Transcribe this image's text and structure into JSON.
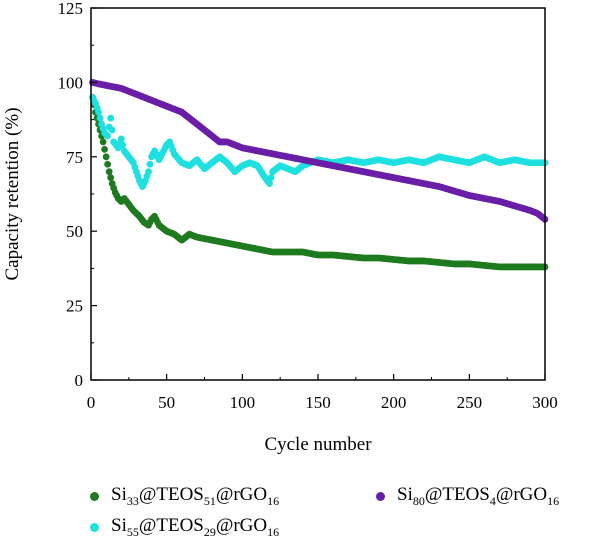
{
  "chart_data": {
    "type": "scatter",
    "xlabel": "Cycle number",
    "ylabel": "Capacity retention (%)",
    "xlim": [
      0,
      300
    ],
    "ylim": [
      0,
      125
    ],
    "x_ticks": [
      "0",
      "50",
      "100",
      "150",
      "200",
      "250",
      "300"
    ],
    "y_ticks": [
      "0",
      "25",
      "50",
      "75",
      "100",
      "125"
    ],
    "grid": false,
    "legend_position": "bottom",
    "series": [
      {
        "name": "Si33@TEOS51@rGO16",
        "color": "#1e7a1e",
        "points": [
          [
            1,
            95
          ],
          [
            3,
            90
          ],
          [
            5,
            86
          ],
          [
            8,
            80
          ],
          [
            10,
            75
          ],
          [
            12,
            70
          ],
          [
            14,
            66
          ],
          [
            16,
            63
          ],
          [
            18,
            61
          ],
          [
            20,
            60
          ],
          [
            22,
            61
          ],
          [
            25,
            59
          ],
          [
            28,
            57
          ],
          [
            30,
            56
          ],
          [
            32,
            55
          ],
          [
            35,
            53
          ],
          [
            38,
            52
          ],
          [
            40,
            54
          ],
          [
            42,
            55
          ],
          [
            45,
            52
          ],
          [
            50,
            50
          ],
          [
            55,
            49
          ],
          [
            60,
            47
          ],
          [
            65,
            49
          ],
          [
            70,
            48
          ],
          [
            80,
            47
          ],
          [
            90,
            46
          ],
          [
            100,
            45
          ],
          [
            110,
            44
          ],
          [
            120,
            43
          ],
          [
            130,
            43
          ],
          [
            140,
            43
          ],
          [
            150,
            42
          ],
          [
            160,
            42
          ],
          [
            170,
            41.5
          ],
          [
            180,
            41
          ],
          [
            190,
            41
          ],
          [
            200,
            40.5
          ],
          [
            210,
            40
          ],
          [
            220,
            40
          ],
          [
            230,
            39.5
          ],
          [
            240,
            39
          ],
          [
            250,
            39
          ],
          [
            260,
            38.5
          ],
          [
            270,
            38
          ],
          [
            280,
            38
          ],
          [
            290,
            38
          ],
          [
            300,
            38
          ]
        ]
      },
      {
        "name": "Si55@TEOS29@rGO16",
        "color": "#1ee0e0",
        "points": [
          [
            1,
            95
          ],
          [
            3,
            93
          ],
          [
            5,
            90
          ],
          [
            7,
            86
          ],
          [
            9,
            83
          ],
          [
            11,
            82
          ],
          [
            13,
            88
          ],
          [
            15,
            80
          ],
          [
            18,
            78
          ],
          [
            20,
            81
          ],
          [
            22,
            77
          ],
          [
            25,
            75
          ],
          [
            28,
            73
          ],
          [
            30,
            70
          ],
          [
            32,
            67
          ],
          [
            34,
            65
          ],
          [
            36,
            67
          ],
          [
            38,
            70
          ],
          [
            40,
            75
          ],
          [
            42,
            77
          ],
          [
            45,
            74
          ],
          [
            48,
            77
          ],
          [
            50,
            79
          ],
          [
            52,
            80
          ],
          [
            55,
            76
          ],
          [
            60,
            73
          ],
          [
            65,
            72
          ],
          [
            70,
            74
          ],
          [
            75,
            71
          ],
          [
            80,
            73
          ],
          [
            85,
            75
          ],
          [
            90,
            73
          ],
          [
            95,
            70
          ],
          [
            100,
            72
          ],
          [
            105,
            73
          ],
          [
            110,
            72
          ],
          [
            115,
            68
          ],
          [
            118,
            66
          ],
          [
            120,
            70
          ],
          [
            125,
            72
          ],
          [
            130,
            71
          ],
          [
            135,
            70
          ],
          [
            140,
            72
          ],
          [
            145,
            73
          ],
          [
            150,
            74
          ],
          [
            160,
            73
          ],
          [
            170,
            74
          ],
          [
            180,
            73
          ],
          [
            190,
            74
          ],
          [
            200,
            73
          ],
          [
            210,
            74
          ],
          [
            220,
            73
          ],
          [
            230,
            75
          ],
          [
            240,
            74
          ],
          [
            250,
            73
          ],
          [
            260,
            75
          ],
          [
            270,
            73
          ],
          [
            280,
            74
          ],
          [
            290,
            73
          ],
          [
            300,
            73
          ]
        ]
      },
      {
        "name": "Si80@TEOS4@rGO16",
        "color": "#6a1ea8",
        "points": [
          [
            1,
            100
          ],
          [
            5,
            99.5
          ],
          [
            10,
            99
          ],
          [
            15,
            98.5
          ],
          [
            20,
            98
          ],
          [
            25,
            97
          ],
          [
            30,
            96
          ],
          [
            35,
            95
          ],
          [
            40,
            94
          ],
          [
            45,
            93
          ],
          [
            50,
            92
          ],
          [
            55,
            91
          ],
          [
            60,
            90
          ],
          [
            65,
            88
          ],
          [
            70,
            86
          ],
          [
            75,
            84
          ],
          [
            80,
            82
          ],
          [
            85,
            80
          ],
          [
            90,
            80
          ],
          [
            95,
            79
          ],
          [
            100,
            78
          ],
          [
            110,
            77
          ],
          [
            120,
            76
          ],
          [
            130,
            75
          ],
          [
            140,
            74
          ],
          [
            150,
            73
          ],
          [
            160,
            72
          ],
          [
            170,
            71
          ],
          [
            180,
            70
          ],
          [
            190,
            69
          ],
          [
            200,
            68
          ],
          [
            210,
            67
          ],
          [
            220,
            66
          ],
          [
            230,
            65
          ],
          [
            240,
            63.5
          ],
          [
            250,
            62
          ],
          [
            260,
            61
          ],
          [
            270,
            60
          ],
          [
            280,
            58.5
          ],
          [
            290,
            57
          ],
          [
            295,
            56
          ],
          [
            300,
            54
          ]
        ]
      }
    ]
  },
  "legend": {
    "item1": {
      "base": "Si",
      "s1": "33",
      "m1": "@TEOS",
      "s2": "51",
      "m2": "@rGO",
      "s3": "16"
    },
    "item2": {
      "base": "Si",
      "s1": "80",
      "m1": "@TEOS",
      "s2": "4",
      "m2": "@rGO",
      "s3": "16"
    },
    "item3": {
      "base": "Si",
      "s1": "55",
      "m1": "@TEOS",
      "s2": "29",
      "m2": "@rGO",
      "s3": "16"
    }
  }
}
